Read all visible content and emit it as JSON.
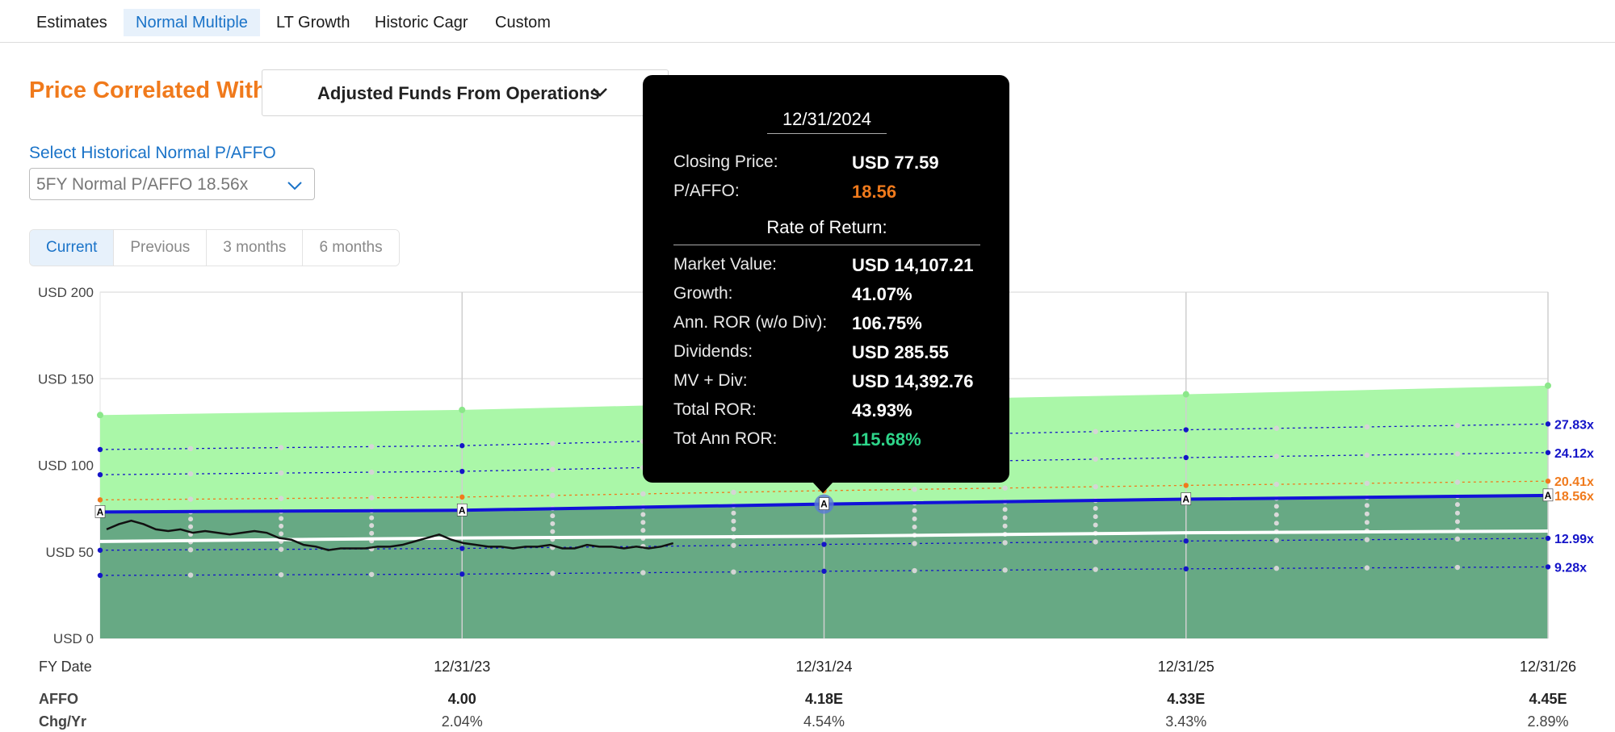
{
  "tabs": [
    {
      "label": "Estimates",
      "active": false
    },
    {
      "label": "Normal Multiple",
      "active": true
    },
    {
      "label": "LT Growth",
      "active": false
    },
    {
      "label": "Historic Cagr",
      "active": false
    },
    {
      "label": "Custom",
      "active": false
    }
  ],
  "correlation": {
    "heading": "Price Correlated With",
    "selected": "Adjusted Funds From Operations"
  },
  "historical_select": {
    "label": "Select Historical Normal P/AFFO",
    "value": "5FY Normal P/AFFO 18.56x"
  },
  "periods": [
    {
      "label": "Current",
      "active": true
    },
    {
      "label": "Previous",
      "active": false
    },
    {
      "label": "3 months",
      "active": false
    },
    {
      "label": "6 months",
      "active": false
    }
  ],
  "tooltip": {
    "date": "12/31/2024",
    "closing_price_label": "Closing Price:",
    "closing_price": "USD 77.59",
    "pe_label": "P/AFFO:",
    "pe": "18.56",
    "section": "Rate of Return:",
    "rows": [
      {
        "label": "Market Value:",
        "value": "USD 14,107.21"
      },
      {
        "label": "Growth:",
        "value": "41.07%"
      },
      {
        "label": "Ann. ROR (w/o Div):",
        "value": "106.75%"
      },
      {
        "label": "Dividends:",
        "value": "USD 285.55"
      },
      {
        "label": "MV + Div:",
        "value": "USD 14,392.76"
      },
      {
        "label": "Total ROR:",
        "value": "43.93%"
      },
      {
        "label": "Tot Ann ROR:",
        "value": "115.68%",
        "highlight": true
      }
    ]
  },
  "chart_data": {
    "type": "area",
    "ylim": [
      0,
      200
    ],
    "yticks": [
      "USD 200",
      "USD 150",
      "USD 100",
      "USD 50",
      "USD 0"
    ],
    "ytick_values": [
      200,
      150,
      100,
      50,
      0
    ],
    "xlim": [
      "2022-12-31",
      "2026-12-31"
    ],
    "x_start_label": "FY Date",
    "x": [
      "12/31/23",
      "12/31/24",
      "12/31/25",
      "12/31/26"
    ],
    "affo_label": "AFFO",
    "affo": [
      "4.00",
      "4.18E",
      "4.33E",
      "4.45E"
    ],
    "chg_label": "Chg/Yr",
    "chg": [
      "2.04%",
      "4.54%",
      "3.43%",
      "2.89%"
    ],
    "upper_band": [
      129,
      132,
      137,
      141,
      146
    ],
    "normal_line": [
      73,
      74,
      77.59,
      80.4,
      82.6
    ],
    "white_line": [
      56,
      58,
      59,
      61,
      62
    ],
    "closing_price": [
      63,
      66,
      68,
      66,
      63,
      62,
      63,
      61,
      62,
      61,
      60,
      61,
      62,
      61,
      58,
      57,
      54,
      53,
      51,
      52,
      52,
      52,
      53,
      53,
      54,
      56,
      58,
      60,
      57,
      55,
      54,
      53,
      53,
      52,
      53,
      53,
      54,
      52,
      52,
      54,
      53,
      53,
      52,
      53,
      52,
      53,
      55
    ],
    "price_x_end": "2024-07-31",
    "multiples": [
      {
        "label": "27.83x",
        "value": 27.83,
        "color": "#1414c8"
      },
      {
        "label": "24.12x",
        "value": 24.12,
        "color": "#1414c8"
      },
      {
        "label": "20.41x",
        "value": 20.41,
        "color": "#f07a1c"
      },
      {
        "label": "18.56x",
        "value": 18.56,
        "color": "#f07a1c"
      },
      {
        "label": "12.99x",
        "value": 12.99,
        "color": "#1414c8"
      },
      {
        "label": "9.28x",
        "value": 9.28,
        "color": "#1414c8"
      }
    ],
    "multiple_factors": [
      4.04,
      4.36,
      4.68,
      5.0
    ],
    "annotation_marker": "A",
    "colors": {
      "upper": "#aaf7a8",
      "lower": "#67a984",
      "normal": "#1212d8",
      "price": "#111111",
      "orange": "#f07a1c",
      "blue": "#1414c8"
    }
  }
}
